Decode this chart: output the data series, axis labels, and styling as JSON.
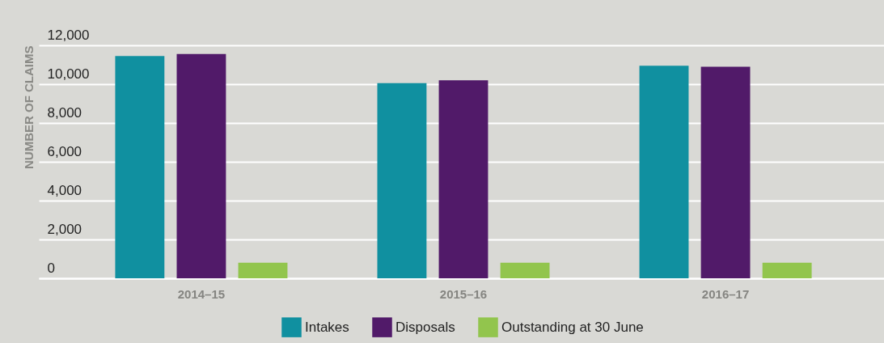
{
  "chart_data": {
    "type": "bar",
    "ylabel": "NUMBER OF CLAIMS",
    "categories": [
      "2014–15",
      "2015–16",
      "2016–17"
    ],
    "series": [
      {
        "name": "Intakes",
        "color": "#1090a0",
        "values": [
          11450,
          10050,
          10950
        ]
      },
      {
        "name": "Disposals",
        "color": "#511a69",
        "values": [
          11550,
          10200,
          10900
        ]
      },
      {
        "name": "Outstanding at 30 June",
        "color": "#92c54d",
        "values": [
          800,
          800,
          800
        ]
      }
    ],
    "ylim": [
      0,
      12000
    ],
    "yticks": [
      0,
      {
        "value": 2000,
        "label": "2,000"
      },
      {
        "value": 4000,
        "label": "4,000"
      },
      {
        "value": 6000,
        "label": "6,000"
      },
      {
        "value": 8000,
        "label": "8,000"
      },
      {
        "value": 10000,
        "label": "10,000"
      },
      {
        "value": 12000,
        "label": "12,000"
      }
    ],
    "grid": "y",
    "legend": "bottom"
  }
}
